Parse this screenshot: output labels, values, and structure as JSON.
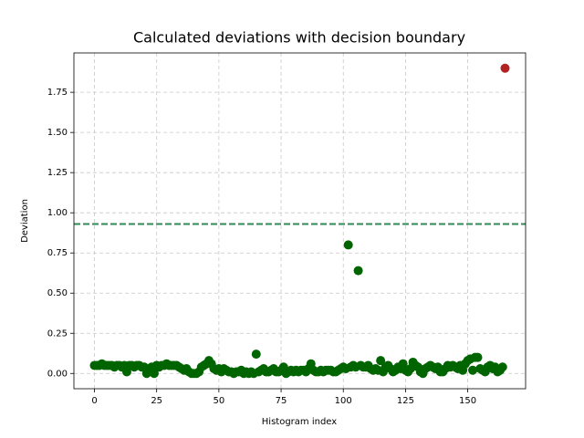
{
  "chart_data": {
    "type": "scatter",
    "title": "Calculated deviations with decision boundary",
    "x_label": "Histogram index",
    "y_label": "Deviation",
    "xlim": [
      -8.25,
      173.25
    ],
    "ylim": [
      -0.095,
      1.995
    ],
    "xticks": [
      0,
      25,
      50,
      75,
      100,
      125,
      150
    ],
    "yticks": [
      {
        "value": 0,
        "label": "0.00"
      },
      {
        "value": 0.25,
        "label": "0.25"
      },
      {
        "value": 0.5,
        "label": "0.50"
      },
      {
        "value": 0.75,
        "label": "0.75"
      },
      {
        "value": 1,
        "label": "1.00"
      },
      {
        "value": 1.25,
        "label": "1.25"
      },
      {
        "value": 1.5,
        "label": "1.50"
      },
      {
        "value": 1.75,
        "label": "1.75"
      }
    ],
    "grid": true,
    "hlines": [
      {
        "y": 0.93,
        "color": "#2e8b57",
        "style": "dashed"
      }
    ],
    "series": [
      {
        "color": "#006400",
        "x": [
          0,
          1,
          2,
          3,
          4,
          5,
          6,
          7,
          8,
          9,
          10,
          11,
          12,
          13,
          14,
          15,
          16,
          17,
          18,
          19,
          20,
          21,
          22,
          23,
          24,
          25,
          26,
          27,
          28,
          29,
          30,
          31,
          32,
          33,
          34,
          35,
          36,
          37,
          38,
          39,
          40,
          41,
          42,
          43,
          44,
          45,
          46,
          47,
          48,
          49,
          50,
          51,
          52,
          53,
          54,
          55,
          56,
          57,
          58,
          59,
          60,
          61,
          62,
          63,
          64,
          65,
          66,
          67,
          68,
          69,
          70,
          71,
          72,
          73,
          74,
          75,
          76,
          77,
          78,
          79,
          80,
          81,
          82,
          83,
          84,
          85,
          86,
          87,
          88,
          89,
          90,
          91,
          92,
          93,
          94,
          95,
          96,
          97,
          98,
          99,
          100,
          101,
          102,
          103,
          104,
          105,
          106,
          107,
          108,
          109,
          110,
          111,
          112,
          113,
          114,
          115,
          116,
          117,
          118,
          119,
          120,
          121,
          122,
          123,
          124,
          125,
          126,
          127,
          128,
          129,
          130,
          131,
          132,
          133,
          134,
          135,
          136,
          137,
          138,
          139,
          140,
          141,
          142,
          143,
          144,
          145,
          146,
          147,
          148,
          149,
          150,
          151,
          152,
          153,
          154,
          155,
          156,
          157,
          158,
          159,
          160,
          161,
          162,
          163,
          164
        ],
        "values": [
          0.05,
          0.05,
          0.05,
          0.06,
          0.05,
          0.05,
          0.05,
          0.05,
          0.04,
          0.05,
          0.05,
          0.04,
          0.05,
          0.01,
          0.05,
          0.05,
          0.04,
          0.05,
          0.05,
          0.04,
          0.04,
          0.0,
          0.03,
          0.04,
          0.0,
          0.05,
          0.04,
          0.05,
          0.05,
          0.06,
          0.05,
          0.05,
          0.05,
          0.05,
          0.04,
          0.03,
          0.02,
          0.03,
          0.01,
          0.0,
          0.0,
          0.0,
          0.01,
          0.04,
          0.05,
          0.06,
          0.08,
          0.06,
          0.03,
          0.02,
          0.03,
          0.01,
          0.03,
          0.02,
          0.01,
          0.01,
          0.0,
          0.01,
          0.01,
          0.02,
          0.0,
          0.01,
          0.0,
          0.01,
          0.0,
          0.12,
          0.01,
          0.02,
          0.03,
          0.01,
          0.01,
          0.02,
          0.03,
          0.01,
          0.01,
          0.02,
          0.04,
          0.0,
          0.01,
          0.02,
          0.01,
          0.02,
          0.01,
          0.02,
          0.02,
          0.01,
          0.03,
          0.06,
          0.02,
          0.01,
          0.01,
          0.02,
          0.01,
          0.02,
          0.02,
          0.02,
          0.01,
          0.01,
          0.02,
          0.03,
          0.04,
          0.03,
          0.8,
          0.04,
          0.05,
          0.04,
          0.64,
          0.05,
          0.04,
          0.04,
          0.05,
          0.03,
          0.02,
          0.03,
          0.02,
          0.08,
          0.01,
          0.04,
          0.05,
          0.03,
          0.01,
          0.02,
          0.04,
          0.03,
          0.06,
          0.02,
          0.01,
          0.03,
          0.07,
          0.05,
          0.04,
          0.01,
          0.0,
          0.03,
          0.04,
          0.05,
          0.04,
          0.03,
          0.04,
          0.01,
          0.01,
          0.03,
          0.05,
          0.04,
          0.05,
          0.04,
          0.03,
          0.05,
          0.02,
          0.06,
          0.08,
          0.09,
          0.02,
          0.1,
          0.1,
          0.03,
          0.02,
          0.01,
          0.04,
          0.05,
          0.03,
          0.04,
          0.01,
          0.02,
          0.04
        ]
      },
      {
        "color": "#b22222",
        "x": [
          165
        ],
        "values": [
          1.9
        ]
      }
    ]
  }
}
